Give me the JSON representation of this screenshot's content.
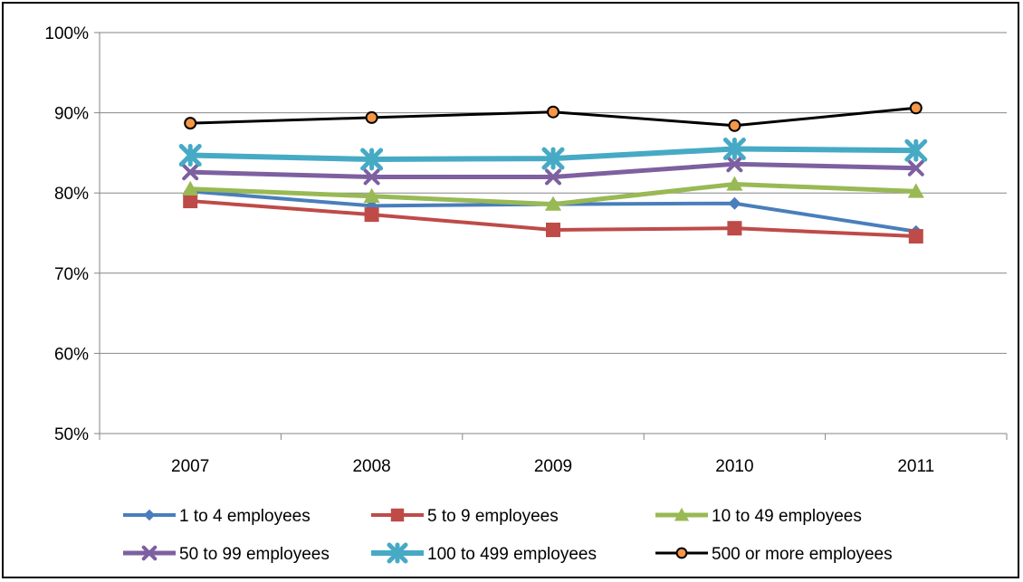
{
  "chart_data": {
    "type": "line",
    "title": "",
    "xlabel": "",
    "ylabel": "",
    "categories": [
      "2007",
      "2008",
      "2009",
      "2010",
      "2011"
    ],
    "ylim": [
      0.5,
      1.0
    ],
    "yticks": [
      {
        "value": 0.5,
        "label": "50%"
      },
      {
        "value": 0.6,
        "label": "60%"
      },
      {
        "value": 0.7,
        "label": "70%"
      },
      {
        "value": 0.8,
        "label": "80%"
      },
      {
        "value": 0.9,
        "label": "90%"
      },
      {
        "value": 1.0,
        "label": "100%"
      }
    ],
    "grid": true,
    "legend_position": "bottom",
    "series": [
      {
        "name": "1 to 4 employees",
        "color": "#4a7ebb",
        "marker": "diamond",
        "values": [
          0.802,
          0.784,
          0.786,
          0.787,
          0.752
        ]
      },
      {
        "name": "5 to 9 employees",
        "color": "#be4b48",
        "marker": "square",
        "values": [
          0.79,
          0.773,
          0.754,
          0.756,
          0.746
        ]
      },
      {
        "name": "10 to 49 employees",
        "color": "#98b954",
        "marker": "triangle",
        "values": [
          0.805,
          0.796,
          0.786,
          0.811,
          0.802
        ]
      },
      {
        "name": "50 to 99 employees",
        "color": "#7d60a0",
        "marker": "x",
        "values": [
          0.826,
          0.82,
          0.82,
          0.836,
          0.831
        ]
      },
      {
        "name": "100 to 499 employees",
        "color": "#46aac5",
        "marker": "star",
        "values": [
          0.847,
          0.842,
          0.843,
          0.855,
          0.853
        ]
      },
      {
        "name": "500 or more employees",
        "color": "#000000",
        "marker": "circle",
        "marker_fill": "#f79646",
        "values": [
          0.887,
          0.894,
          0.901,
          0.884,
          0.906
        ]
      }
    ]
  }
}
